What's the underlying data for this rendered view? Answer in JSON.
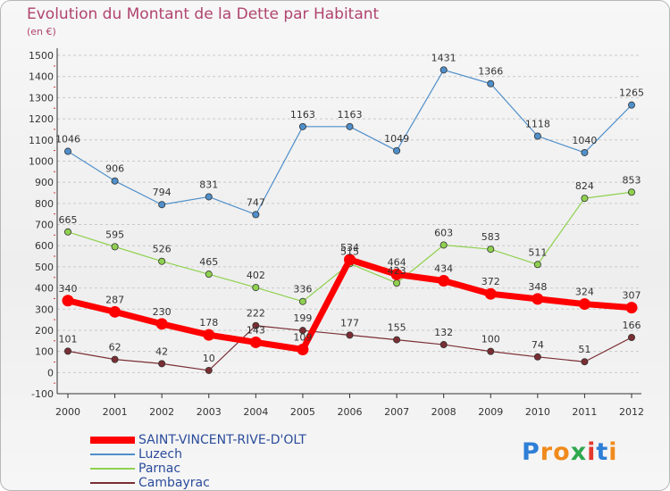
{
  "title": "Evolution du Montant de la Dette par Habitant",
  "unit": "(en €)",
  "brand": {
    "letters": [
      "P",
      "r",
      "o",
      "x",
      "i",
      "t",
      "i"
    ],
    "colors": [
      "#2e7fd6",
      "#f08a1c",
      "#f08a1c",
      "#2fa84f",
      "#e23a2c",
      "#2e7fd6",
      "#f08a1c"
    ]
  },
  "chart_data": {
    "type": "line",
    "title": "Evolution du Montant de la Dette par Habitant",
    "ylabel": "(en €)",
    "xlabel": "",
    "x": [
      "2000",
      "2001",
      "2002",
      "2003",
      "2004",
      "2005",
      "2006",
      "2007",
      "2008",
      "2009",
      "2010",
      "2011",
      "2012"
    ],
    "ylim": [
      -100,
      1500
    ],
    "yticks": [
      -100,
      0,
      100,
      200,
      300,
      400,
      500,
      600,
      700,
      800,
      900,
      1000,
      1100,
      1200,
      1300,
      1400,
      1500
    ],
    "grid": "horizontal dashed",
    "legend_position": "bottom-left",
    "series": [
      {
        "name": "SAINT-VINCENT-RIVE-D'OLT",
        "color": "#ff0000",
        "values": [
          340,
          287,
          230,
          178,
          143,
          109,
          534,
          464,
          434,
          372,
          348,
          324,
          307
        ]
      },
      {
        "name": "Luzech",
        "color": "#4f8fca",
        "values": [
          1046,
          906,
          794,
          831,
          747,
          1163,
          1163,
          1049,
          1431,
          1366,
          1118,
          1040,
          1265
        ]
      },
      {
        "name": "Parnac",
        "color": "#8fd14f",
        "values": [
          665,
          595,
          526,
          465,
          402,
          336,
          515,
          423,
          603,
          583,
          511,
          824,
          853
        ]
      },
      {
        "name": "Cambayrac",
        "color": "#7a2e33",
        "values": [
          101,
          62,
          42,
          10,
          222,
          199,
          177,
          155,
          132,
          100,
          74,
          51,
          166
        ]
      }
    ]
  }
}
